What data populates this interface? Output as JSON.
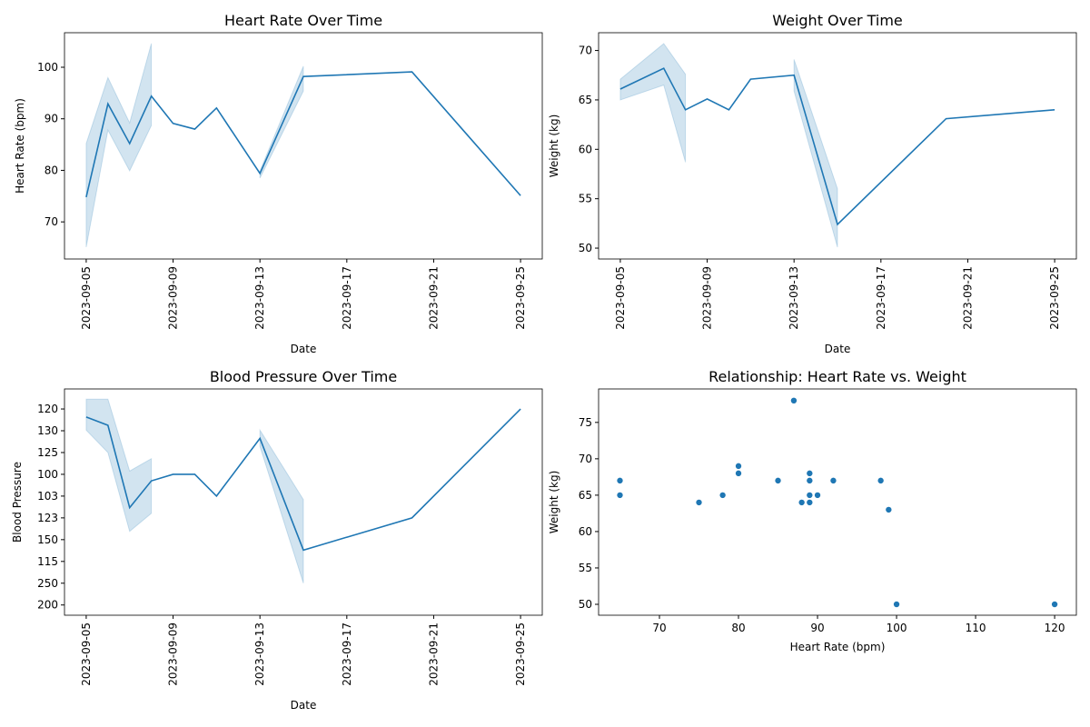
{
  "chart_data": [
    {
      "type": "line",
      "title": "Heart Rate Over Time",
      "x_label": "Date",
      "y_label": "Heart Rate (bpm)",
      "color": "#1f77b4",
      "x": [
        "2023-09-05",
        "2023-09-06",
        "2023-09-07",
        "2023-09-08",
        "2023-09-09",
        "2023-09-10",
        "2023-09-11",
        "2023-09-13",
        "2023-09-15",
        "2023-09-20",
        "2023-09-25"
      ],
      "values": [
        74.8,
        92.9,
        85.2,
        94.4,
        89.1,
        88,
        92.1,
        79.4,
        98.2,
        99.1,
        75.1
      ],
      "band_lower": [
        65.1,
        87.8,
        79.9,
        88.7,
        null,
        null,
        null,
        78.5,
        95.4,
        null,
        null
      ],
      "band_upper": [
        85.2,
        98,
        89.2,
        104.6,
        null,
        null,
        null,
        79.9,
        100.2,
        null,
        null
      ],
      "xlim": [
        "2023-09-04",
        "2023-09-26"
      ],
      "xticks": [
        "2023-09-05",
        "2023-09-09",
        "2023-09-13",
        "2023-09-17",
        "2023-09-21",
        "2023-09-25"
      ],
      "ylim": [
        62.8,
        106.7
      ],
      "yticks": [
        70,
        80,
        90,
        100
      ]
    },
    {
      "type": "line",
      "title": "Weight Over Time",
      "x_label": "Date",
      "y_label": "Weight (kg)",
      "color": "#1f77b4",
      "x": [
        "2023-09-05",
        "2023-09-07",
        "2023-09-08",
        "2023-09-09",
        "2023-09-10",
        "2023-09-11",
        "2023-09-13",
        "2023-09-15",
        "2023-09-20",
        "2023-09-25"
      ],
      "values": [
        66.1,
        68.2,
        64,
        65.1,
        64,
        67.1,
        67.5,
        52.4,
        63.1,
        64
      ],
      "band_lower": [
        65,
        66.5,
        58.7,
        null,
        null,
        null,
        65.9,
        50.1,
        null,
        null
      ],
      "band_upper": [
        67.1,
        70.7,
        67.6,
        null,
        null,
        null,
        69.1,
        56,
        null,
        null
      ],
      "xlim": [
        "2023-09-04",
        "2023-09-26"
      ],
      "xticks": [
        "2023-09-05",
        "2023-09-09",
        "2023-09-13",
        "2023-09-17",
        "2023-09-21",
        "2023-09-25"
      ],
      "ylim": [
        48.9,
        71.8
      ],
      "yticks": [
        50,
        55,
        60,
        65,
        70
      ]
    },
    {
      "type": "line",
      "title": "Blood Pressure Over Time",
      "x_label": "Date",
      "y_label": "Blood Pressure",
      "color": "#1f77b4",
      "x": [
        "2023-09-05",
        "2023-09-06",
        "2023-09-07",
        "2023-09-08",
        "2023-09-09",
        "2023-09-10",
        "2023-09-11",
        "2023-09-13",
        "2023-09-15",
        "2023-09-20",
        "2023-09-25"
      ],
      "values": [
        0.37,
        0.75,
        4.53,
        3.3,
        3,
        3,
        4,
        1.35,
        6.48,
        5,
        0
      ],
      "band_lower": [
        0.97,
        2,
        5.62,
        4.79,
        null,
        null,
        null,
        1.72,
        8,
        null,
        null
      ],
      "band_upper": [
        -0.45,
        -0.45,
        2.85,
        2.28,
        null,
        null,
        null,
        0.97,
        4.16,
        null,
        null
      ],
      "xlim": [
        "2023-09-04",
        "2023-09-26"
      ],
      "xticks": [
        "2023-09-05",
        "2023-09-09",
        "2023-09-13",
        "2023-09-17",
        "2023-09-21",
        "2023-09-25"
      ],
      "ylim": [
        9.47,
        -0.92
      ],
      "yticks": [
        {
          "value": 0,
          "label": "120"
        },
        {
          "value": 1,
          "label": "130"
        },
        {
          "value": 2,
          "label": "125"
        },
        {
          "value": 3,
          "label": "100"
        },
        {
          "value": 4,
          "label": "103"
        },
        {
          "value": 5,
          "label": "123"
        },
        {
          "value": 6,
          "label": "150"
        },
        {
          "value": 7,
          "label": "115"
        },
        {
          "value": 8,
          "label": "250"
        },
        {
          "value": 9,
          "label": "200"
        }
      ]
    },
    {
      "type": "scatter",
      "title": "Relationship: Heart Rate vs. Weight",
      "x_label": "Heart Rate (bpm)",
      "y_label": "Weight (kg)",
      "color": "#1f77b4",
      "x": [
        65,
        65,
        75,
        78,
        80,
        80,
        85,
        87,
        88,
        89,
        89,
        89,
        89,
        90,
        92,
        98,
        99,
        100,
        120
      ],
      "values": [
        67,
        65,
        64,
        65,
        69,
        68,
        67,
        78,
        64,
        68,
        67,
        65,
        64,
        65,
        67,
        67,
        63,
        50,
        50
      ],
      "xlim": [
        62.3,
        122.75
      ],
      "xticks": [
        70,
        80,
        90,
        100,
        110,
        120
      ],
      "ylim": [
        48.5,
        79.6
      ],
      "yticks": [
        50,
        55,
        60,
        65,
        70,
        75
      ]
    }
  ]
}
